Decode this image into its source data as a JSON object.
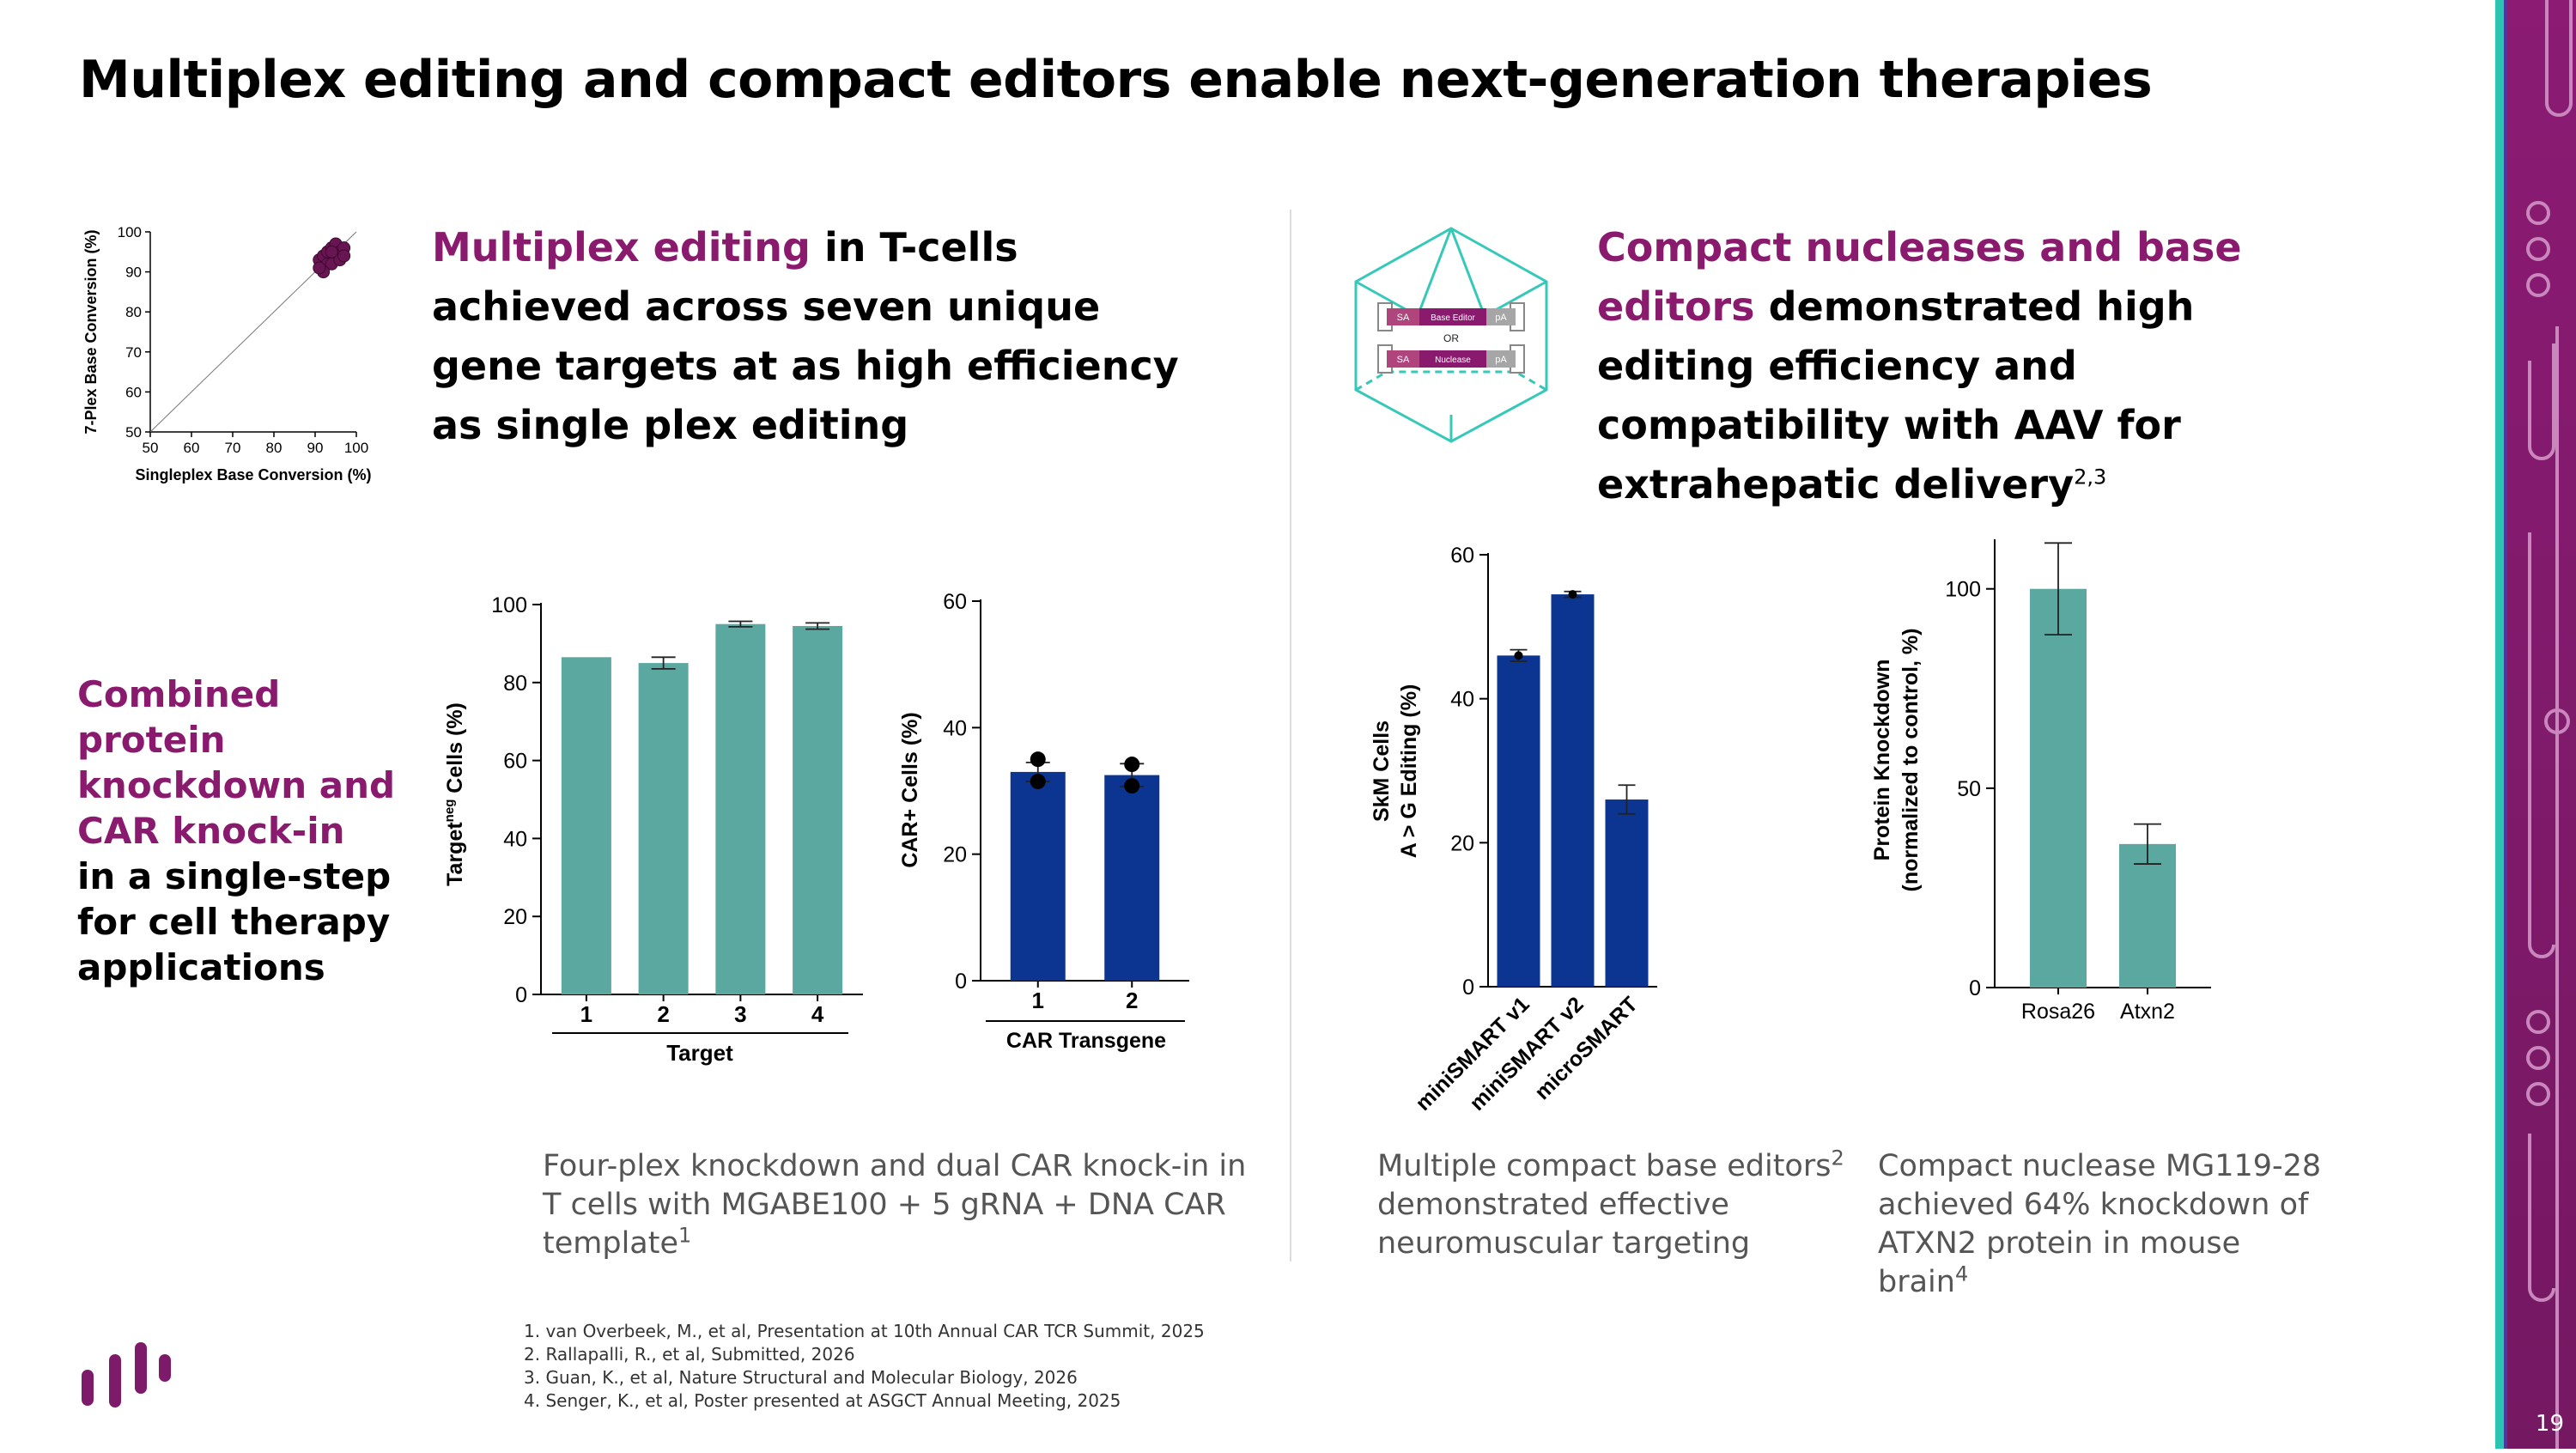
{
  "title": "Multiplex editing and compact editors enable next-generation therapies",
  "colors": {
    "accent": "#8a1a6e",
    "teal": "#5aa8a0",
    "navy": "#0b3590",
    "scatter": "#6a1553",
    "sidebar": "#7d1a69",
    "sidebar_edge": "#2bc4b3"
  },
  "headline1": {
    "accent": "Multiplex editing",
    "rest": " in T-cells achieved across seven unique gene targets at as high efficiency as single plex editing"
  },
  "headline2": {
    "accent": "Compact nucleases and base editors",
    "rest": " demonstrated high editing efficiency and compatibility with AAV for extrahepatic delivery",
    "sup": "2,3"
  },
  "side_text": {
    "accent": "Combined protein knockdown and CAR knock-in",
    "rest": "in a single-step for cell therapy applications"
  },
  "aav_diagram": {
    "row1": [
      "SA",
      "Base Editor",
      "pA"
    ],
    "or": "OR",
    "row2": [
      "SA",
      "Nuclease",
      "pA"
    ]
  },
  "caption1": {
    "text": "Four-plex knockdown and dual CAR knock-in in T cells with MGABE100 + 5 gRNA + DNA CAR template",
    "sup": "1"
  },
  "caption2": {
    "text": "Multiple compact base editors",
    "sup": "2",
    "text2": " demonstrated effective neuromuscular targeting"
  },
  "caption3": {
    "text": "Compact nuclease MG119-28 achieved 64% knockdown of ATXN2 protein in mouse brain",
    "sup": "4"
  },
  "references": [
    "1. van Overbeek, M., et al, Presentation at 10th Annual CAR TCR Summit, 2025",
    "2. Rallapalli, R., et al, Submitted, 2026",
    "3. Guan, K., et al, Nature Structural and Molecular Biology, 2026",
    "4. Senger, K., et al, Poster presented at ASGCT Annual Meeting, 2025"
  ],
  "page_number": "19",
  "chart_data": [
    {
      "id": "scatter",
      "type": "scatter",
      "xlabel": "Singleplex Base Conversion (%)",
      "ylabel": "7-Plex Base Conversion (%)",
      "xlim": [
        50,
        100
      ],
      "ylim": [
        50,
        100
      ],
      "xticks": [
        50,
        60,
        70,
        80,
        90,
        100
      ],
      "yticks": [
        50,
        60,
        70,
        80,
        90,
        100
      ],
      "identity_line": true,
      "points": [
        [
          91,
          93
        ],
        [
          92,
          94
        ],
        [
          93,
          95
        ],
        [
          94,
          96
        ],
        [
          95,
          97
        ],
        [
          96,
          95
        ],
        [
          97,
          96
        ],
        [
          93,
          92
        ],
        [
          95,
          94
        ],
        [
          94,
          92
        ],
        [
          92,
          90
        ],
        [
          96,
          93
        ],
        [
          91,
          91
        ],
        [
          94,
          95
        ],
        [
          97,
          94
        ]
      ]
    },
    {
      "id": "knockdown",
      "type": "bar",
      "categories": [
        "1",
        "2",
        "3",
        "4"
      ],
      "values": [
        86.5,
        85,
        95,
        94.5
      ],
      "errors": [
        0,
        1.5,
        0.7,
        0.8
      ],
      "ylabel": "Target",
      "ylabel_sup": "neg",
      "ylabel_tail": " Cells (%)",
      "xlabel": "Target",
      "ylim": [
        0,
        100
      ],
      "yticks": [
        0,
        20,
        40,
        60,
        80,
        100
      ]
    },
    {
      "id": "car",
      "type": "bar",
      "categories": [
        "1",
        "2"
      ],
      "values": [
        33,
        32.5
      ],
      "errors": [
        1.5,
        1.8
      ],
      "points": [
        [
          35,
          31.5
        ],
        [
          34.2,
          30.8
        ]
      ],
      "ylabel": "CAR+ Cells (%)",
      "xlabel": "CAR Transgene",
      "ylim": [
        0,
        60
      ],
      "yticks": [
        0,
        20,
        40,
        60
      ]
    },
    {
      "id": "skm",
      "type": "bar",
      "categories": [
        "miniSMART v1",
        "miniSMART v2",
        "microSMART"
      ],
      "values": [
        46,
        54.5,
        26
      ],
      "errors": [
        0.8,
        0.4,
        2
      ],
      "ylabel": "SkM Cells",
      "ylabel2": "A > G Editing (%)",
      "ylim": [
        0,
        60
      ],
      "yticks": [
        0,
        20,
        40,
        60
      ]
    },
    {
      "id": "protein",
      "type": "bar",
      "categories": [
        "Rosa26",
        "Atxn2"
      ],
      "values": [
        100,
        36
      ],
      "errors": [
        11.5,
        5
      ],
      "ylabel": "Protein Knockdown",
      "ylabel2": "(normalized to control, %)",
      "ylim": [
        0,
        112
      ],
      "yticks": [
        0,
        50,
        100
      ]
    }
  ]
}
